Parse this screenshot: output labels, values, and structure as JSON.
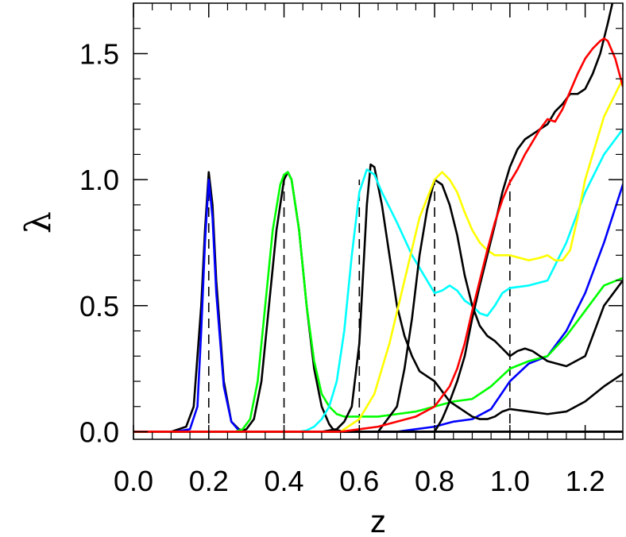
{
  "chart_data": {
    "type": "line",
    "xlabel": "z",
    "ylabel": "λ",
    "xlim": [
      0.0,
      1.3
    ],
    "ylim": [
      -0.03,
      1.7
    ],
    "xticks": [
      0.0,
      0.2,
      0.4,
      0.6,
      0.8,
      1.0,
      1.2
    ],
    "xtick_labels": [
      "0.0",
      "0.2",
      "0.4",
      "0.6",
      "0.8",
      "1.0",
      "1.2"
    ],
    "yticks": [
      0.0,
      0.5,
      1.0,
      1.5
    ],
    "ytick_labels": [
      "0.0",
      "0.5",
      "1.0",
      "1.5"
    ],
    "grid": false,
    "dashed_lines_x": [
      0.2,
      0.4,
      0.6,
      0.8,
      1.0
    ],
    "series": [
      {
        "color": "#000000",
        "x": [
          0.0,
          0.1,
          0.12,
          0.14,
          0.16,
          0.18,
          0.19,
          0.2,
          0.21,
          0.22,
          0.24,
          0.26,
          0.28,
          0.3,
          1.3
        ],
        "y": [
          0,
          0,
          0.01,
          0.02,
          0.1,
          0.5,
          0.8,
          1.03,
          0.9,
          0.6,
          0.2,
          0.04,
          0.01,
          0,
          0
        ]
      },
      {
        "color": "#0000ff",
        "x": [
          0.0,
          0.11,
          0.13,
          0.15,
          0.17,
          0.18,
          0.19,
          0.2,
          0.21,
          0.22,
          0.24,
          0.26,
          0.28,
          0.3,
          0.5,
          0.7,
          0.8,
          0.85,
          0.9,
          0.95,
          1.0,
          1.05,
          1.1,
          1.15,
          1.2,
          1.25,
          1.3
        ],
        "y": [
          0,
          0,
          0.005,
          0.01,
          0.1,
          0.4,
          0.75,
          1.0,
          0.85,
          0.55,
          0.18,
          0.04,
          0.005,
          0,
          0,
          0,
          0.02,
          0.04,
          0.05,
          0.09,
          0.2,
          0.27,
          0.3,
          0.4,
          0.55,
          0.75,
          0.98
        ]
      },
      {
        "color": "#000000",
        "x": [
          0.0,
          0.28,
          0.3,
          0.32,
          0.34,
          0.36,
          0.38,
          0.4,
          0.41,
          0.42,
          0.44,
          0.46,
          0.48,
          0.5,
          0.52,
          0.53,
          0.56,
          1.3
        ],
        "y": [
          0,
          0,
          0.01,
          0.05,
          0.2,
          0.5,
          0.8,
          1.0,
          1.03,
          1.0,
          0.8,
          0.5,
          0.25,
          0.1,
          0.03,
          0.01,
          0,
          0
        ]
      },
      {
        "color": "#00ff00",
        "x": [
          0.0,
          0.27,
          0.29,
          0.31,
          0.33,
          0.35,
          0.37,
          0.39,
          0.4,
          0.41,
          0.42,
          0.44,
          0.46,
          0.48,
          0.5,
          0.52,
          0.54,
          0.56,
          0.6,
          0.65,
          0.7,
          0.75,
          0.8,
          0.85,
          0.9,
          0.95,
          1.0,
          1.05,
          1.1,
          1.15,
          1.2,
          1.25,
          1.3
        ],
        "y": [
          0,
          0,
          0.01,
          0.05,
          0.2,
          0.5,
          0.8,
          0.98,
          1.02,
          1.03,
          1.0,
          0.8,
          0.5,
          0.28,
          0.15,
          0.1,
          0.07,
          0.06,
          0.06,
          0.06,
          0.07,
          0.08,
          0.1,
          0.12,
          0.13,
          0.18,
          0.25,
          0.28,
          0.3,
          0.38,
          0.48,
          0.58,
          0.61
        ]
      },
      {
        "color": "#000000",
        "x": [
          0.0,
          0.5,
          0.54,
          0.56,
          0.58,
          0.6,
          0.62,
          0.63,
          0.64,
          0.66,
          0.68,
          0.7,
          0.72,
          0.74,
          0.76,
          0.78,
          0.8,
          0.82,
          0.84,
          0.86,
          0.88,
          0.9,
          0.92,
          0.94,
          0.96,
          0.98,
          1.0,
          1.05,
          1.1,
          1.15,
          1.2,
          1.25,
          1.3
        ],
        "y": [
          0,
          0,
          0.01,
          0.04,
          0.1,
          0.35,
          0.9,
          1.06,
          1.05,
          0.9,
          0.7,
          0.5,
          0.38,
          0.3,
          0.24,
          0.22,
          0.2,
          0.16,
          0.12,
          0.1,
          0.08,
          0.06,
          0.05,
          0.05,
          0.06,
          0.08,
          0.09,
          0.08,
          0.07,
          0.08,
          0.12,
          0.18,
          0.23
        ]
      },
      {
        "color": "#00ffff",
        "x": [
          0.0,
          0.44,
          0.46,
          0.48,
          0.5,
          0.52,
          0.54,
          0.56,
          0.58,
          0.6,
          0.62,
          0.64,
          0.66,
          0.7,
          0.74,
          0.78,
          0.8,
          0.82,
          0.84,
          0.86,
          0.88,
          0.9,
          0.92,
          0.94,
          0.96,
          0.98,
          1.0,
          1.05,
          1.1,
          1.15,
          1.2,
          1.25,
          1.3
        ],
        "y": [
          0,
          0,
          0.005,
          0.02,
          0.05,
          0.1,
          0.2,
          0.4,
          0.7,
          0.95,
          1.04,
          1.02,
          0.95,
          0.83,
          0.7,
          0.6,
          0.55,
          0.56,
          0.58,
          0.56,
          0.52,
          0.5,
          0.47,
          0.46,
          0.5,
          0.55,
          0.57,
          0.58,
          0.6,
          0.75,
          0.95,
          1.1,
          1.2
        ]
      },
      {
        "color": "#000000",
        "x": [
          0.0,
          0.65,
          0.7,
          0.72,
          0.74,
          0.76,
          0.78,
          0.8,
          0.82,
          0.84,
          0.86,
          0.88,
          0.9,
          0.92,
          0.94,
          0.96,
          0.98,
          1.0,
          1.02,
          1.04,
          1.06,
          1.08,
          1.1,
          1.15,
          1.2,
          1.25,
          1.3
        ],
        "y": [
          0,
          0,
          0.1,
          0.25,
          0.45,
          0.7,
          0.88,
          1.0,
          0.98,
          0.9,
          0.78,
          0.62,
          0.5,
          0.42,
          0.38,
          0.36,
          0.33,
          0.3,
          0.32,
          0.33,
          0.32,
          0.3,
          0.28,
          0.26,
          0.3,
          0.5,
          0.6
        ]
      },
      {
        "color": "#ffff00",
        "x": [
          0.0,
          0.55,
          0.6,
          0.64,
          0.68,
          0.72,
          0.76,
          0.8,
          0.82,
          0.84,
          0.86,
          0.88,
          0.9,
          0.92,
          0.94,
          0.96,
          0.98,
          1.0,
          1.05,
          1.08,
          1.1,
          1.12,
          1.14,
          1.16,
          1.18,
          1.2,
          1.25,
          1.3
        ],
        "y": [
          0,
          0,
          0.05,
          0.15,
          0.35,
          0.6,
          0.85,
          1.0,
          1.03,
          1.0,
          0.95,
          0.87,
          0.8,
          0.75,
          0.72,
          0.7,
          0.7,
          0.7,
          0.68,
          0.69,
          0.7,
          0.68,
          0.68,
          0.72,
          0.85,
          1.0,
          1.25,
          1.4
        ]
      },
      {
        "color": "#000000",
        "x": [
          0.0,
          0.8,
          0.82,
          0.84,
          0.86,
          0.88,
          0.9,
          0.92,
          0.94,
          0.96,
          0.98,
          1.0,
          1.02,
          1.04,
          1.06,
          1.08,
          1.1,
          1.12,
          1.14,
          1.16,
          1.18,
          1.2,
          1.22,
          1.24,
          1.26,
          1.28
        ],
        "y": [
          0,
          0,
          0.05,
          0.12,
          0.2,
          0.3,
          0.45,
          0.58,
          0.7,
          0.82,
          0.95,
          1.05,
          1.12,
          1.16,
          1.18,
          1.2,
          1.22,
          1.27,
          1.3,
          1.34,
          1.34,
          1.36,
          1.42,
          1.5,
          1.62,
          1.75
        ]
      },
      {
        "color": "#ff0000",
        "x": [
          0.0,
          0.55,
          0.6,
          0.65,
          0.7,
          0.75,
          0.8,
          0.84,
          0.86,
          0.88,
          0.9,
          0.92,
          0.94,
          0.96,
          0.98,
          1.0,
          1.02,
          1.04,
          1.06,
          1.08,
          1.1,
          1.12,
          1.14,
          1.16,
          1.18,
          1.2,
          1.22,
          1.24,
          1.25,
          1.26,
          1.28,
          1.3
        ],
        "y": [
          0,
          0,
          0.01,
          0.02,
          0.04,
          0.06,
          0.1,
          0.18,
          0.25,
          0.35,
          0.48,
          0.6,
          0.72,
          0.83,
          0.92,
          0.99,
          1.04,
          1.1,
          1.15,
          1.2,
          1.24,
          1.23,
          1.28,
          1.35,
          1.42,
          1.48,
          1.52,
          1.55,
          1.56,
          1.55,
          1.48,
          1.37
        ]
      }
    ]
  }
}
